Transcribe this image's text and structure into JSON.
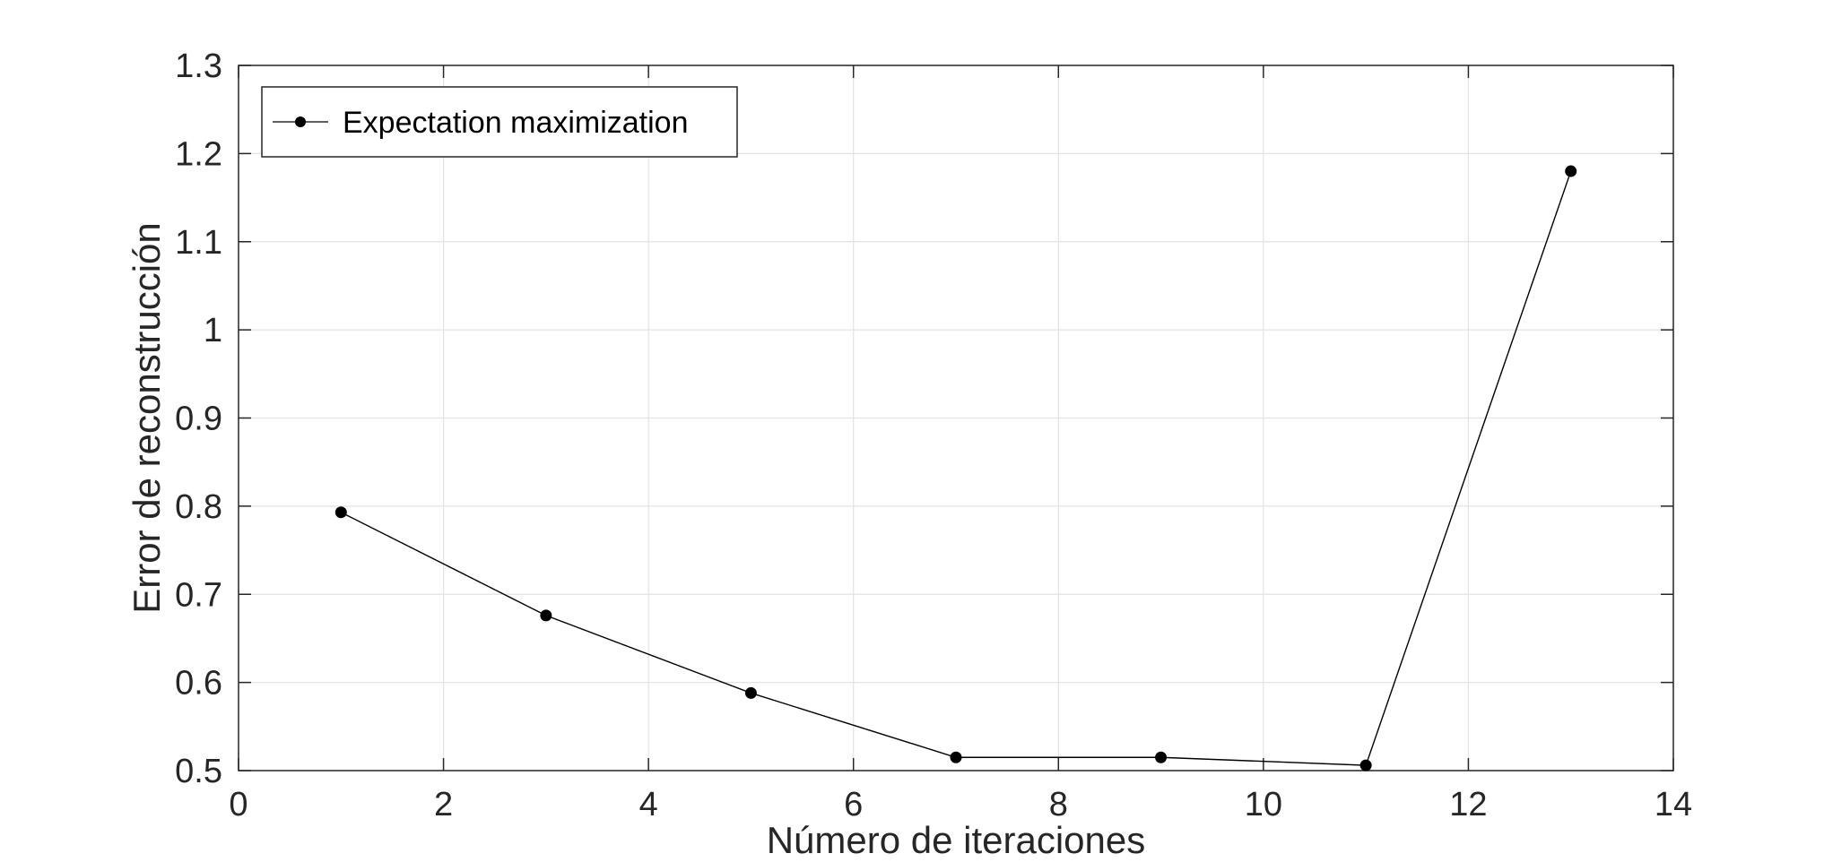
{
  "chart_data": {
    "type": "line",
    "title": "",
    "xlabel": "Número de iteraciones",
    "ylabel": "Error de reconstrucción",
    "xlim": [
      0,
      14
    ],
    "ylim": [
      0.5,
      1.3
    ],
    "x_ticks": [
      0,
      2,
      4,
      6,
      8,
      10,
      12,
      14
    ],
    "y_ticks": [
      0.5,
      0.6,
      0.7,
      0.8,
      0.9,
      1.0,
      1.1,
      1.2,
      1.3
    ],
    "x_tick_labels": [
      "0",
      "2",
      "4",
      "6",
      "8",
      "10",
      "12",
      "14"
    ],
    "y_tick_labels": [
      "0.5",
      "0.6",
      "0.7",
      "0.8",
      "0.9",
      "1",
      "1.1",
      "1.2",
      "1.3"
    ],
    "grid": true,
    "legend_position": "top-left",
    "series": [
      {
        "name": "Expectation maximization",
        "color": "#000000",
        "marker": "filled-circle",
        "x": [
          1,
          3,
          5,
          7,
          9,
          11,
          13
        ],
        "y": [
          0.793,
          0.676,
          0.588,
          0.515,
          0.515,
          0.506,
          1.18
        ]
      }
    ]
  }
}
